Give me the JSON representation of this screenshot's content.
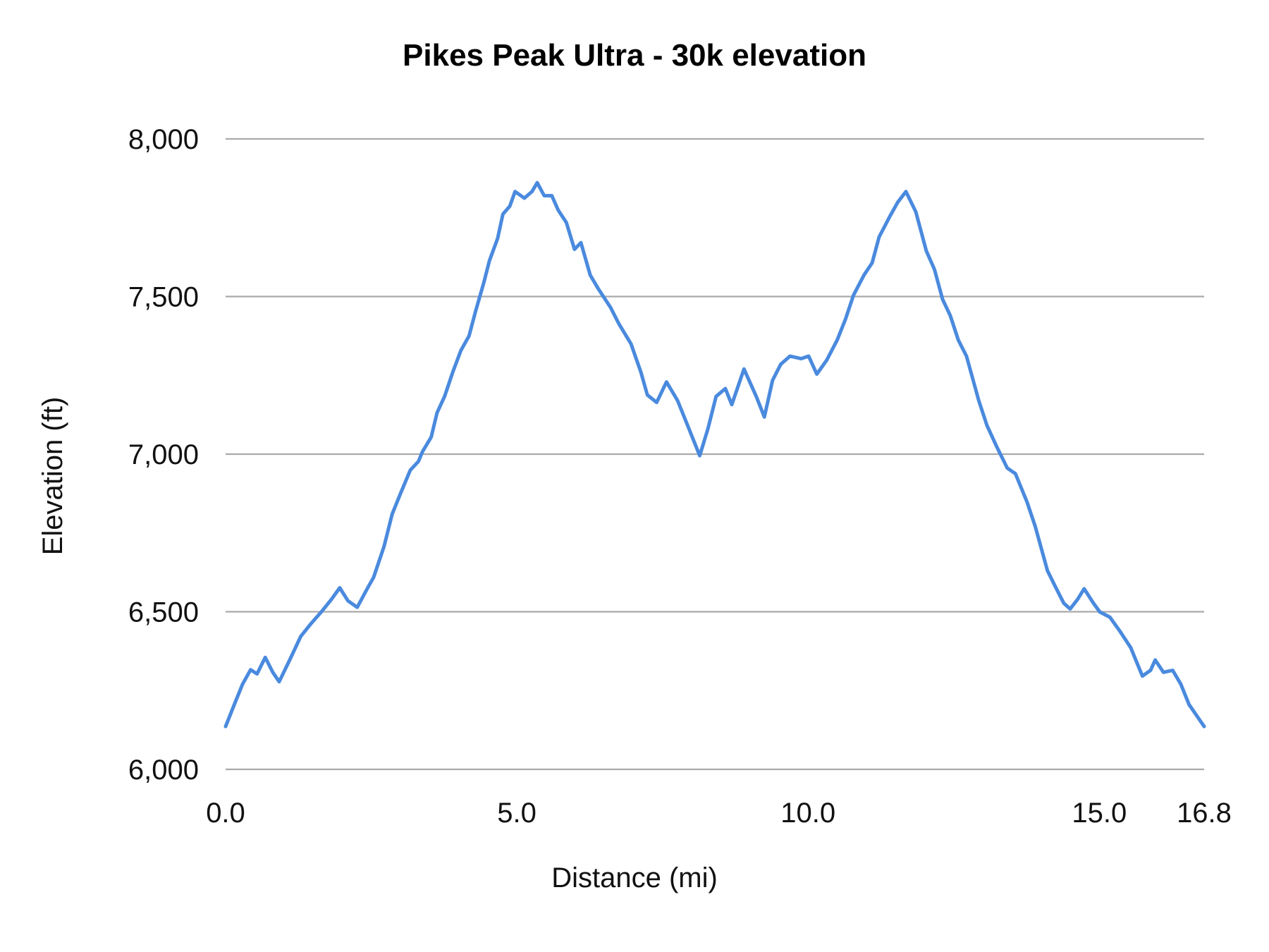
{
  "chart_data": {
    "type": "line",
    "title": "Pikes Peak Ultra - 30k elevation",
    "xlabel": "Distance (mi)",
    "ylabel": "Elevation (ft)",
    "xlim": [
      0,
      16.8
    ],
    "ylim": [
      6000,
      8000
    ],
    "x_ticks": [
      "0.0",
      "5.0",
      "10.0",
      "15.0",
      "16.8"
    ],
    "x_tick_values": [
      0,
      5,
      10,
      15,
      16.8
    ],
    "y_ticks": [
      "6,000",
      "6,500",
      "7,000",
      "7,500",
      "8,000"
    ],
    "y_tick_values": [
      6000,
      6500,
      7000,
      7500,
      8000
    ],
    "grid": "horizontal",
    "legend": "none",
    "line_color": "#4a8ade",
    "grid_color": "#aaaaaa",
    "series": [
      {
        "x": [
          0,
          0.15,
          0.29,
          0.43,
          0.54,
          0.68,
          0.81,
          0.92,
          1.1,
          1.29,
          1.47,
          1.65,
          1.82,
          1.96,
          2.1,
          2.26,
          2.44,
          2.54,
          2.72,
          2.86,
          3.0,
          3.17,
          3.31,
          3.38,
          3.53,
          3.63,
          3.76,
          3.9,
          4.04,
          4.18,
          4.29,
          4.43,
          4.53,
          4.67,
          4.76,
          4.88,
          4.97,
          5.13,
          5.26,
          5.35,
          5.47,
          5.6,
          5.71,
          5.85,
          5.99,
          6.1,
          6.26,
          6.4,
          6.61,
          6.75,
          6.96,
          7.13,
          7.24,
          7.4,
          7.57,
          7.76,
          7.93,
          8.14,
          8.28,
          8.42,
          8.58,
          8.69,
          8.9,
          9.11,
          9.25,
          9.39,
          9.53,
          9.69,
          9.88,
          10.01,
          10.15,
          10.32,
          10.5,
          10.64,
          10.78,
          10.96,
          11.1,
          11.22,
          11.4,
          11.54,
          11.68,
          11.85,
          12.03,
          12.17,
          12.31,
          12.44,
          12.58,
          12.72,
          12.93,
          13.07,
          13.24,
          13.42,
          13.56,
          13.76,
          13.9,
          14.11,
          14.25,
          14.39,
          14.5,
          14.63,
          14.74,
          14.9,
          15.01,
          15.18,
          15.36,
          15.54,
          15.74,
          15.88,
          15.96,
          16.1,
          16.26,
          16.4,
          16.54,
          16.8
        ],
        "y": [
          6136,
          6206,
          6270,
          6316,
          6303,
          6355,
          6308,
          6278,
          6347,
          6422,
          6463,
          6501,
          6540,
          6576,
          6535,
          6514,
          6576,
          6609,
          6707,
          6810,
          6874,
          6949,
          6977,
          7008,
          7054,
          7131,
          7183,
          7260,
          7329,
          7375,
          7452,
          7542,
          7614,
          7684,
          7761,
          7787,
          7833,
          7812,
          7833,
          7861,
          7820,
          7820,
          7774,
          7735,
          7650,
          7671,
          7568,
          7524,
          7465,
          7414,
          7350,
          7260,
          7188,
          7164,
          7229,
          7170,
          7092,
          6995,
          7080,
          7183,
          7208,
          7157,
          7270,
          7183,
          7118,
          7234,
          7285,
          7311,
          7303,
          7311,
          7254,
          7298,
          7362,
          7427,
          7504,
          7568,
          7607,
          7689,
          7753,
          7799,
          7833,
          7769,
          7645,
          7586,
          7491,
          7440,
          7362,
          7311,
          7170,
          7092,
          7023,
          6956,
          6938,
          6848,
          6771,
          6630,
          6578,
          6527,
          6509,
          6540,
          6573,
          6527,
          6499,
          6483,
          6437,
          6386,
          6296,
          6314,
          6347,
          6308,
          6314,
          6270,
          6206,
          6136
        ]
      }
    ]
  }
}
